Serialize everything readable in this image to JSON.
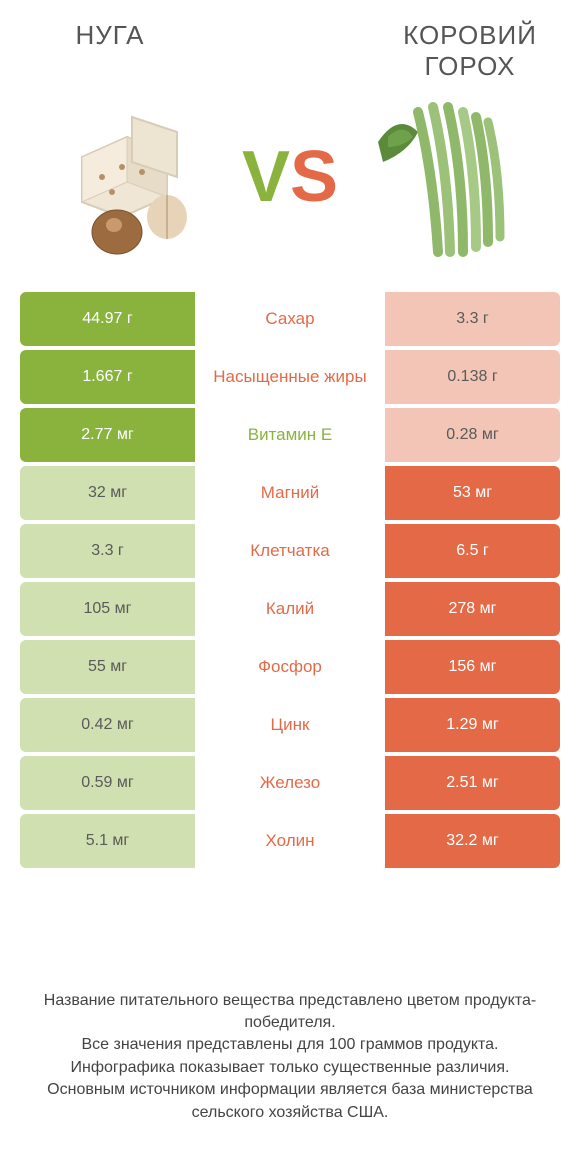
{
  "colors": {
    "green": "#8ab33e",
    "orange": "#e46a47",
    "pale_green": "#d1e0b0",
    "pale_orange": "#f3c5b6",
    "text_gray": "#555555"
  },
  "header": {
    "left_title": "Нуга",
    "right_title": "Коровий горох",
    "vs_v": "V",
    "vs_s": "S"
  },
  "rows": [
    {
      "label": "Сахар",
      "left": "44.97 г",
      "right": "3.3 г",
      "winner": "left",
      "label_color": "orange"
    },
    {
      "label": "Насыщенные жиры",
      "left": "1.667 г",
      "right": "0.138 г",
      "winner": "left",
      "label_color": "orange"
    },
    {
      "label": "Витамин E",
      "left": "2.77 мг",
      "right": "0.28 мг",
      "winner": "left",
      "label_color": "green"
    },
    {
      "label": "Магний",
      "left": "32 мг",
      "right": "53 мг",
      "winner": "right",
      "label_color": "orange"
    },
    {
      "label": "Клетчатка",
      "left": "3.3 г",
      "right": "6.5 г",
      "winner": "right",
      "label_color": "orange"
    },
    {
      "label": "Калий",
      "left": "105 мг",
      "right": "278 мг",
      "winner": "right",
      "label_color": "orange"
    },
    {
      "label": "Фосфор",
      "left": "55 мг",
      "right": "156 мг",
      "winner": "right",
      "label_color": "orange"
    },
    {
      "label": "Цинк",
      "left": "0.42 мг",
      "right": "1.29 мг",
      "winner": "right",
      "label_color": "orange"
    },
    {
      "label": "Железо",
      "left": "0.59 мг",
      "right": "2.51 мг",
      "winner": "right",
      "label_color": "orange"
    },
    {
      "label": "Холин",
      "left": "5.1 мг",
      "right": "32.2 мг",
      "winner": "right",
      "label_color": "orange"
    }
  ],
  "footer": {
    "line1": "Название питательного вещества представлено цветом продукта-победителя.",
    "line2": "Все значения представлены для 100 граммов продукта.",
    "line3": "Инфографика показывает только существенные различия.",
    "line4": "Основным источником информации является база министерства сельского хозяйства США."
  }
}
